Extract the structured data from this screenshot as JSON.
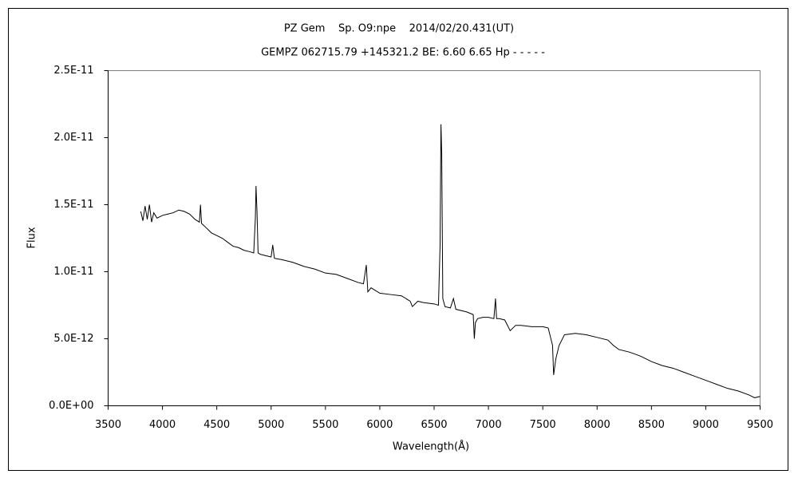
{
  "chart_data": {
    "type": "line",
    "title": "PZ Gem    Sp. O9:npe    2014/02/20.431(UT)",
    "subtitle": "GEMPZ 062715.79 +145321.2 BE: 6.60 6.65 Hp - - - - -",
    "x_label": "Wavelength(Å)",
    "y_label": "Flux",
    "xlim": [
      3500,
      9500
    ],
    "xticks": [
      3500,
      4000,
      4500,
      5000,
      5500,
      6000,
      6500,
      7000,
      7500,
      8000,
      8500,
      9000,
      9500
    ],
    "ylim": [
      0,
      2.5e-11
    ],
    "yticks": [
      {
        "value": 0,
        "label": "0.0E+00"
      },
      {
        "value": 5e-12,
        "label": "5.0E-12"
      },
      {
        "value": 1e-11,
        "label": "1.0E-11"
      },
      {
        "value": 1.5e-11,
        "label": "1.5E-11"
      },
      {
        "value": 2e-11,
        "label": "2.0E-11"
      },
      {
        "value": 2.5e-11,
        "label": "2.5E-11"
      }
    ],
    "grid": false,
    "series": [
      {
        "color": "#000000",
        "x": [
          3800,
          3820,
          3840,
          3860,
          3880,
          3900,
          3920,
          3950,
          4000,
          4050,
          4100,
          4150,
          4200,
          4250,
          4300,
          4340,
          4350,
          4360,
          4400,
          4450,
          4500,
          4550,
          4600,
          4650,
          4700,
          4750,
          4800,
          4840,
          4855,
          4861,
          4870,
          4880,
          4900,
          4950,
          5000,
          5015,
          5030,
          5100,
          5200,
          5300,
          5400,
          5500,
          5600,
          5700,
          5800,
          5850,
          5876,
          5890,
          5920,
          6000,
          6100,
          6200,
          6280,
          6300,
          6350,
          6400,
          6500,
          6540,
          6555,
          6563,
          6570,
          6580,
          6600,
          6650,
          6678,
          6700,
          6800,
          6860,
          6870,
          6880,
          6900,
          6950,
          7000,
          7050,
          7065,
          7075,
          7100,
          7150,
          7200,
          7250,
          7300,
          7400,
          7500,
          7550,
          7590,
          7600,
          7620,
          7650,
          7700,
          7800,
          7900,
          8000,
          8100,
          8150,
          8200,
          8300,
          8400,
          8500,
          8600,
          8700,
          8800,
          8900,
          9000,
          9100,
          9200,
          9300,
          9400,
          9450,
          9500
        ],
        "values": [
          1.45e-11,
          1.38e-11,
          1.49e-11,
          1.39e-11,
          1.5e-11,
          1.37e-11,
          1.44e-11,
          1.4e-11,
          1.42e-11,
          1.43e-11,
          1.44e-11,
          1.46e-11,
          1.45e-11,
          1.43e-11,
          1.39e-11,
          1.37e-11,
          1.5e-11,
          1.36e-11,
          1.33e-11,
          1.29e-11,
          1.27e-11,
          1.25e-11,
          1.22e-11,
          1.19e-11,
          1.18e-11,
          1.16e-11,
          1.15e-11,
          1.14e-11,
          1.4e-11,
          1.64e-11,
          1.45e-11,
          1.14e-11,
          1.13e-11,
          1.12e-11,
          1.11e-11,
          1.2e-11,
          1.1e-11,
          1.09e-11,
          1.07e-11,
          1.04e-11,
          1.02e-11,
          9.9e-12,
          9.8e-12,
          9.5e-12,
          9.2e-12,
          9.1e-12,
          1.05e-11,
          8.5e-12,
          8.8e-12,
          8.4e-12,
          8.3e-12,
          8.2e-12,
          7.8e-12,
          7.4e-12,
          7.8e-12,
          7.7e-12,
          7.6e-12,
          7.5e-12,
          1.2e-11,
          2.1e-11,
          1.88e-11,
          8e-12,
          7.4e-12,
          7.3e-12,
          8e-12,
          7.2e-12,
          7e-12,
          6.8e-12,
          5e-12,
          6.2e-12,
          6.5e-12,
          6.6e-12,
          6.6e-12,
          6.5e-12,
          8e-12,
          6.5e-12,
          6.5e-12,
          6.4e-12,
          5.6e-12,
          6e-12,
          6e-12,
          5.9e-12,
          5.9e-12,
          5.8e-12,
          4.5e-12,
          2.3e-12,
          3.5e-12,
          4.5e-12,
          5.3e-12,
          5.4e-12,
          5.3e-12,
          5.1e-12,
          4.9e-12,
          4.5e-12,
          4.2e-12,
          4e-12,
          3.7e-12,
          3.3e-12,
          3e-12,
          2.8e-12,
          2.5e-12,
          2.2e-12,
          1.9e-12,
          1.6e-12,
          1.3e-12,
          1.1e-12,
          8e-13,
          6e-13,
          7e-13
        ]
      }
    ]
  }
}
